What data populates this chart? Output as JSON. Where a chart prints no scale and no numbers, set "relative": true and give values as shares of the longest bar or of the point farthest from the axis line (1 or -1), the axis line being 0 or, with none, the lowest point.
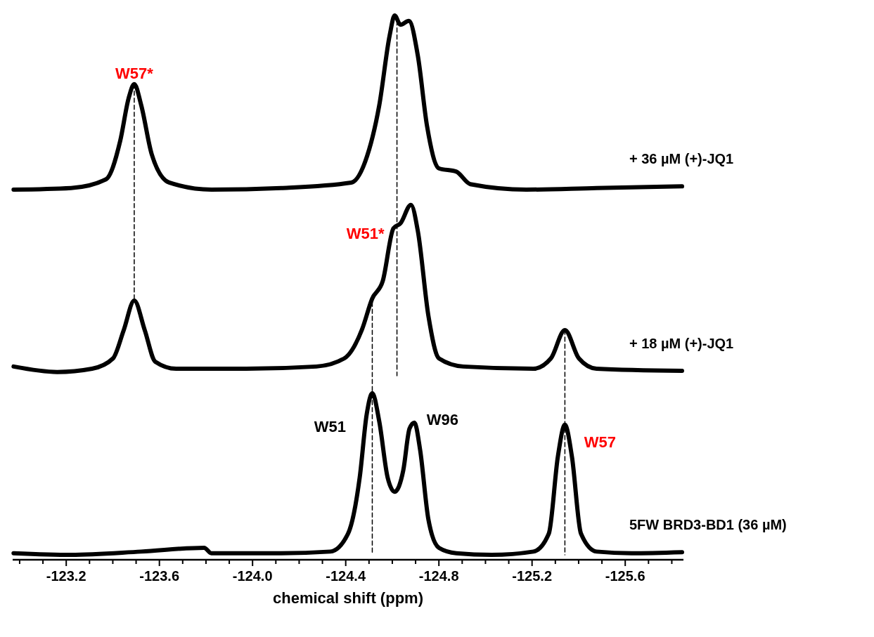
{
  "chart_data": {
    "type": "line",
    "relative": true,
    "xlabel": "chemical shift (ppm)",
    "xlim": [
      -122.97,
      -125.85
    ],
    "xticks": [
      {
        "value": -123.0,
        "label": null
      },
      {
        "value": -123.1,
        "label": null
      },
      -123.2,
      {
        "value": -123.3,
        "label": null
      },
      {
        "value": -123.4,
        "label": null
      },
      {
        "value": -123.5,
        "label": null
      },
      -123.6,
      {
        "value": -123.7,
        "label": null
      },
      {
        "value": -123.8,
        "label": null
      },
      {
        "value": -123.9,
        "label": null
      },
      {
        "value": -124.0,
        "label": "-124.0"
      },
      {
        "value": -124.1,
        "label": null
      },
      {
        "value": -124.2,
        "label": null
      },
      {
        "value": -124.3,
        "label": null
      },
      -124.4,
      {
        "value": -124.5,
        "label": null
      },
      {
        "value": -124.6,
        "label": null
      },
      {
        "value": -124.7,
        "label": null
      },
      -124.8,
      {
        "value": -124.9,
        "label": null
      },
      {
        "value": -125.0,
        "label": null
      },
      {
        "value": -125.1,
        "label": null
      },
      -125.2,
      {
        "value": -125.3,
        "label": null
      },
      {
        "value": -125.4,
        "label": null
      },
      {
        "value": -125.5,
        "label": null
      },
      -125.6,
      {
        "value": -125.7,
        "label": null
      },
      {
        "value": -125.8,
        "label": null
      }
    ],
    "tick_labels": "x",
    "grid": false,
    "legend": false,
    "marker": "none",
    "line_style": "solid",
    "series": [
      {
        "name": "+ 36 µM (+)-JQ1",
        "color": "#000000",
        "x": [
          -122.974,
          -123.221,
          -123.371,
          -123.432,
          -123.468,
          -123.492,
          -123.522,
          -123.567,
          -123.642,
          -123.823,
          -124.123,
          -124.424,
          -124.484,
          -124.544,
          -124.589,
          -124.61,
          -124.635,
          -124.671,
          -124.71,
          -124.749,
          -124.8,
          -124.875,
          -124.935,
          -125.176,
          -125.477,
          -125.844
        ],
        "values": [
          0.68,
          0.683,
          0.699,
          0.77,
          0.848,
          0.874,
          0.835,
          0.745,
          0.693,
          0.68,
          0.683,
          0.693,
          0.732,
          0.835,
          0.964,
          1.0,
          0.983,
          0.99,
          0.925,
          0.797,
          0.719,
          0.713,
          0.69,
          0.68,
          0.683,
          0.686
        ]
      },
      {
        "name": "+ 18 µM (+)-JQ1",
        "color": "#000000",
        "x": [
          -122.974,
          -123.161,
          -123.311,
          -123.401,
          -123.447,
          -123.492,
          -123.537,
          -123.582,
          -123.672,
          -123.973,
          -124.274,
          -124.394,
          -124.469,
          -124.514,
          -124.559,
          -124.605,
          -124.635,
          -124.68,
          -124.71,
          -124.755,
          -124.8,
          -124.905,
          -125.206,
          -125.281,
          -125.341,
          -125.401,
          -125.477,
          -125.844
        ],
        "values": [
          0.355,
          0.345,
          0.351,
          0.37,
          0.422,
          0.476,
          0.422,
          0.364,
          0.351,
          0.351,
          0.355,
          0.37,
          0.422,
          0.48,
          0.512,
          0.609,
          0.618,
          0.652,
          0.603,
          0.448,
          0.37,
          0.355,
          0.351,
          0.37,
          0.422,
          0.37,
          0.351,
          0.347
        ]
      },
      {
        "name": "5FW BRD3-BD1 (36 µM)",
        "color": "#000000",
        "x": [
          -122.974,
          -123.221,
          -123.522,
          -123.792,
          -123.823,
          -124.123,
          -124.334,
          -124.41,
          -124.46,
          -124.49,
          -124.514,
          -124.544,
          -124.58,
          -124.61,
          -124.647,
          -124.674,
          -124.695,
          -124.719,
          -124.755,
          -124.8,
          -124.875,
          -125.026,
          -125.206,
          -125.272,
          -125.311,
          -125.341,
          -125.371,
          -125.41,
          -125.477,
          -125.627,
          -125.844
        ],
        "values": [
          0.012,
          0.009,
          0.015,
          0.022,
          0.012,
          0.012,
          0.015,
          0.048,
          0.151,
          0.267,
          0.306,
          0.254,
          0.151,
          0.125,
          0.164,
          0.241,
          0.252,
          0.203,
          0.074,
          0.022,
          0.012,
          0.009,
          0.015,
          0.048,
          0.19,
          0.248,
          0.19,
          0.048,
          0.015,
          0.012,
          0.014
        ]
      },
      {
        "color": "#000000",
        "line_style": "dashed",
        "x": [
          -123.492,
          -123.492
        ],
        "values": [
          0.874,
          0.476
        ]
      },
      {
        "color": "#000000",
        "line_style": "dashed",
        "x": [
          -124.62,
          -124.62
        ],
        "values": [
          0.99,
          0.338
        ]
      },
      {
        "color": "#000000",
        "line_style": "dashed",
        "x": [
          -124.514,
          -124.514
        ],
        "values": [
          0.486,
          0.009
        ]
      },
      {
        "color": "#000000",
        "line_style": "dashed",
        "x": [
          -125.341,
          -125.341
        ],
        "values": [
          0.422,
          0.009
        ]
      }
    ],
    "annotations": [
      {
        "text": "W57*",
        "x": -123.492,
        "y": 0.874
      },
      {
        "text": "W51*",
        "x": -124.605,
        "y": 0.609
      },
      {
        "text": "W51",
        "x": -124.514,
        "y": 0.306
      },
      {
        "text": "W96",
        "x": -124.695,
        "y": 0.252
      },
      {
        "text": "W57",
        "x": -125.341,
        "y": 0.248
      }
    ]
  }
}
